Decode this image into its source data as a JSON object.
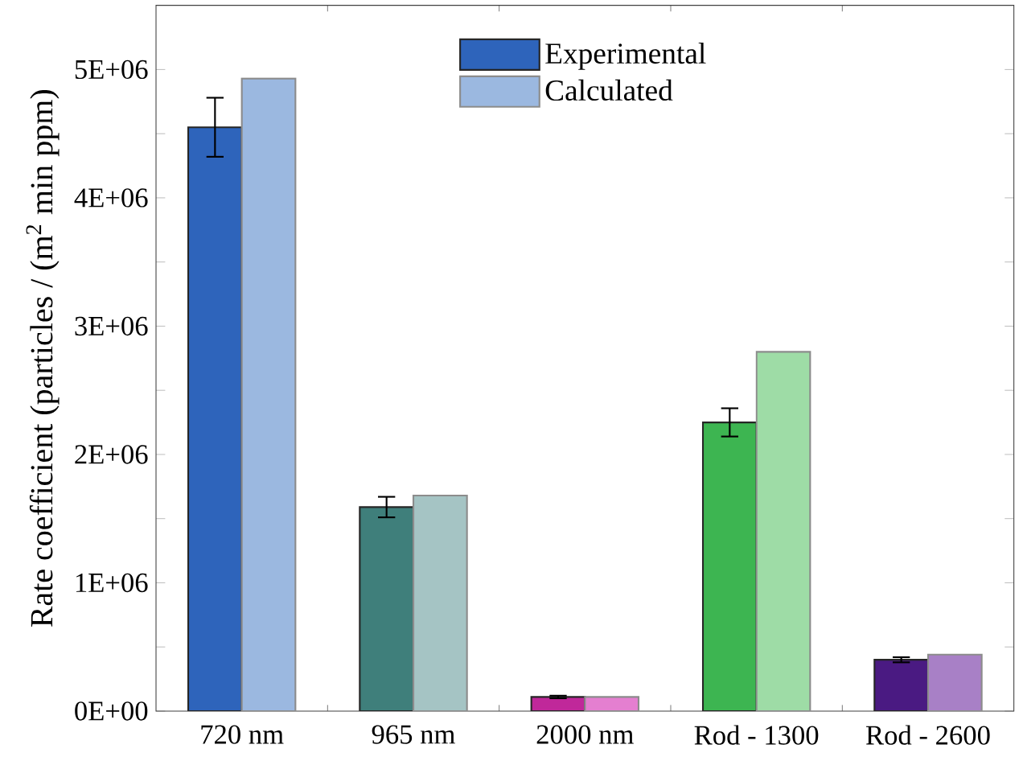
{
  "chart_data": {
    "type": "bar",
    "ylabel": "Rate coefficient (particles / (m$^{2}$ min ppm)",
    "categories": [
      "720 nm",
      "965 nm",
      "2000 nm",
      "Rod - 1300",
      "Rod - 2600"
    ],
    "series": [
      {
        "name": "Experimental",
        "values": [
          4550000,
          1590000,
          110000,
          2250000,
          400000
        ],
        "errors": [
          230000,
          80000,
          10000,
          110000,
          20000
        ],
        "colors": [
          "#2e64bb",
          "#3f7f7b",
          "#c0289a",
          "#3db551",
          "#4a1a82"
        ]
      },
      {
        "name": "Calculated",
        "values": [
          4930000,
          1680000,
          110000,
          2800000,
          440000
        ],
        "colors": [
          "#9bb8e0",
          "#a5c4c4",
          "#e47fd0",
          "#9edca6",
          "#a880c6"
        ]
      }
    ],
    "ylim": [
      0,
      5500000
    ],
    "yticks": [
      {
        "value": 0,
        "label": "0E+00"
      },
      {
        "value": 500000,
        "label": null
      },
      {
        "value": 1000000,
        "label": "1E+06"
      },
      {
        "value": 1500000,
        "label": null
      },
      {
        "value": 2000000,
        "label": "2E+06"
      },
      {
        "value": 2500000,
        "label": null
      },
      {
        "value": 3000000,
        "label": "3E+06"
      },
      {
        "value": 3500000,
        "label": null
      },
      {
        "value": 4000000,
        "label": "4E+06"
      },
      {
        "value": 4500000,
        "label": null
      },
      {
        "value": 5000000,
        "label": "5E+06"
      }
    ],
    "legend": "top",
    "grid": false
  }
}
